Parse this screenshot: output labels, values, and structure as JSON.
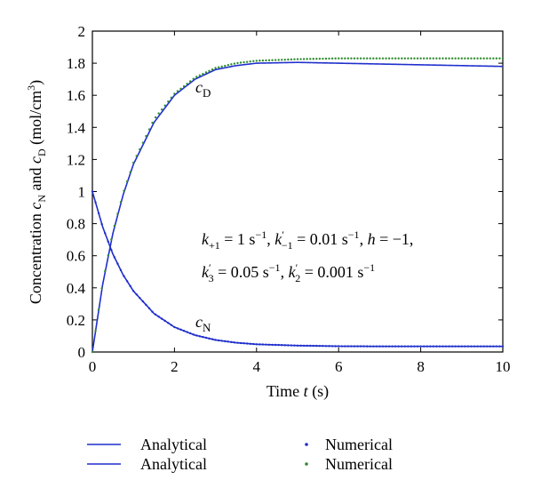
{
  "chart_data": {
    "type": "line",
    "xlabel": "Time t (s)",
    "ylabel": "Concentration c_N and c_D (mol/cm^3)",
    "xlim": [
      0,
      10
    ],
    "ylim": [
      0,
      2
    ],
    "x_ticks": [
      "0",
      "2",
      "4",
      "6",
      "8",
      "10"
    ],
    "y_ticks": [
      "0",
      "0.2",
      "0.4",
      "0.6",
      "0.8",
      "1",
      "1.2",
      "1.4",
      "1.6",
      "1.8",
      "2"
    ],
    "grid": false,
    "curve_labels": {
      "cD": {
        "base": "c",
        "sub": "D"
      },
      "cN": {
        "base": "c",
        "sub": "N"
      }
    },
    "annotation": {
      "line1": "k+1 = 1 s^-1, k'-1 = 0.01 s^-1, h = -1,",
      "line2": "k'3 = 0.05 s^-1, k'2 = 0.001 s^-1"
    },
    "x": [
      0,
      0.25,
      0.5,
      0.75,
      1,
      1.5,
      2,
      2.5,
      3,
      3.5,
      4,
      5,
      6,
      7,
      8,
      9,
      10
    ],
    "series": [
      {
        "name": "Analytical",
        "curve": "cD",
        "style": "line",
        "color": "#1f2fcc",
        "values": [
          0,
          0.42,
          0.74,
          0.98,
          1.17,
          1.43,
          1.6,
          1.7,
          1.76,
          1.785,
          1.8,
          1.805,
          1.8,
          1.795,
          1.79,
          1.785,
          1.78
        ]
      },
      {
        "name": "Numerical",
        "curve": "cD",
        "style": "dots",
        "color": "#2e8b2e",
        "values": [
          0,
          0.43,
          0.75,
          0.99,
          1.18,
          1.45,
          1.61,
          1.71,
          1.77,
          1.8,
          1.815,
          1.825,
          1.83,
          1.83,
          1.83,
          1.83,
          1.83
        ]
      },
      {
        "name": "Analytical",
        "curve": "cN",
        "style": "line",
        "color": "#1f2fcc",
        "values": [
          1,
          0.78,
          0.61,
          0.48,
          0.38,
          0.24,
          0.155,
          0.105,
          0.075,
          0.058,
          0.048,
          0.04,
          0.036,
          0.035,
          0.035,
          0.035,
          0.035
        ]
      },
      {
        "name": "Numerical",
        "curve": "cN",
        "style": "dots",
        "color": "#1f2fcc",
        "values": [
          1,
          0.78,
          0.61,
          0.48,
          0.38,
          0.24,
          0.155,
          0.105,
          0.075,
          0.058,
          0.048,
          0.04,
          0.036,
          0.035,
          0.035,
          0.035,
          0.035
        ]
      }
    ],
    "legend": {
      "placement": "bottom",
      "entries": [
        {
          "label": "Analytical",
          "marker": "line",
          "color": "#1f2fcc"
        },
        {
          "label": "Numerical",
          "marker": "dot",
          "color": "#1f2fcc"
        },
        {
          "label": "Analytical",
          "marker": "line",
          "color": "#1f2fcc"
        },
        {
          "label": "Numerical",
          "marker": "dot",
          "color": "#2e8b2e"
        }
      ]
    }
  }
}
